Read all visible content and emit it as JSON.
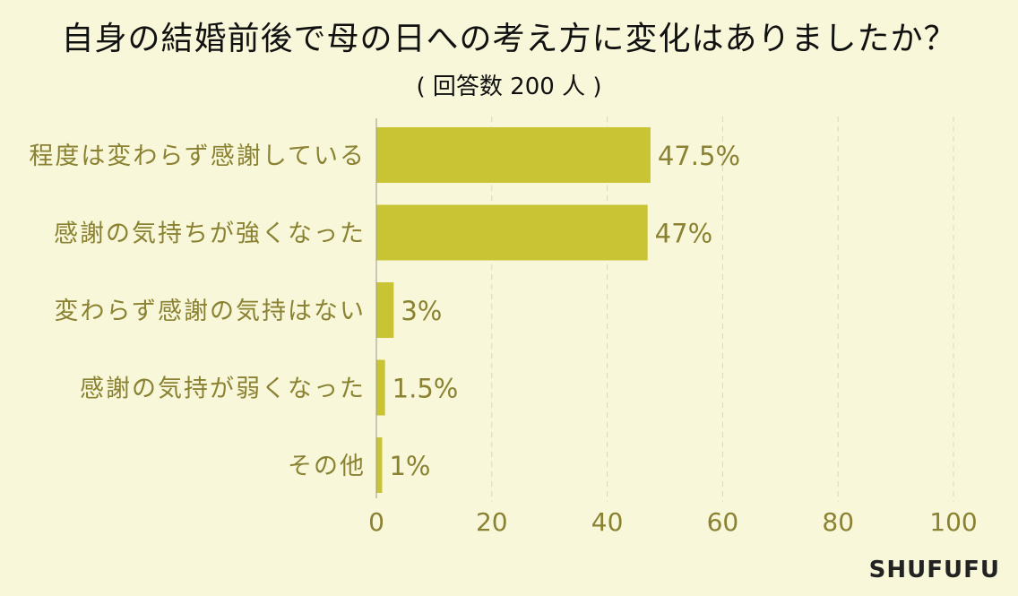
{
  "chart_data": {
    "type": "bar",
    "orientation": "horizontal",
    "title": "自身の結婚前後で母の日への考え方に変化はありましたか？",
    "subtitle": "( 回答数 200 人 )",
    "categories": [
      "程度は変わらず感謝している",
      "感謝の気持ちが強くなった",
      "変わらず感謝の気持はない",
      "感謝の気持が弱くなった",
      "その他"
    ],
    "values": [
      47.5,
      47,
      3,
      1.5,
      1
    ],
    "value_labels": [
      "47.5%",
      "47%",
      "3%",
      "1.5%",
      "1%"
    ],
    "xlim": [
      0,
      100
    ],
    "x_ticks": [
      "0",
      "20",
      "40",
      "60",
      "80",
      "100"
    ],
    "grid": "vertical dashed",
    "colors": {
      "bar": "#c9c434",
      "text": "#8a8232",
      "background": "#f8f7d9",
      "grid": "#d9d8c0"
    }
  },
  "brand": "SHUFUFU"
}
